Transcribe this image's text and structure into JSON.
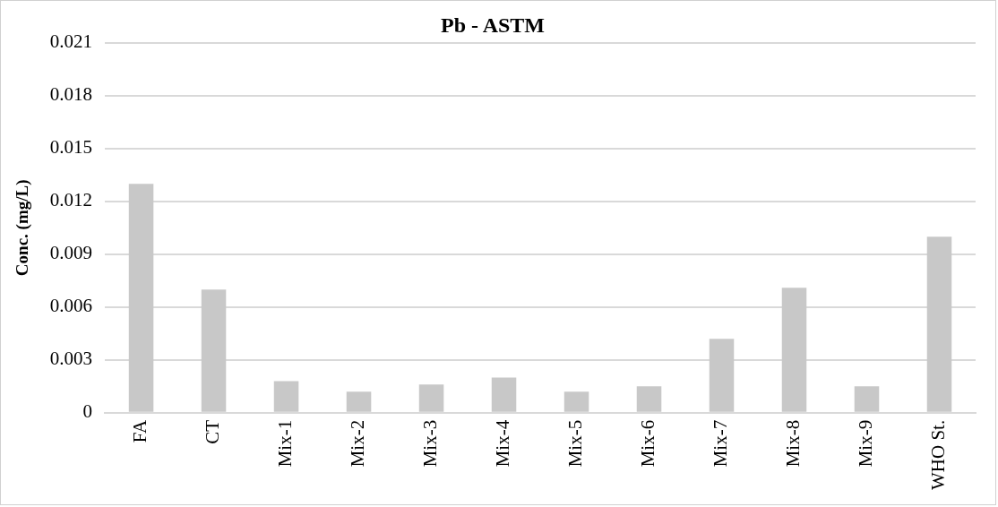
{
  "chart_data": {
    "type": "bar",
    "title": "Pb - ASTM",
    "ylabel": "Conc. (mg/L)",
    "categories": [
      "FA",
      "CT",
      "Mix-1",
      "Mix-2",
      "Mix-3",
      "Mix-4",
      "Mix-5",
      "Mix-6",
      "Mix-7",
      "Mix-8",
      "Mix-9",
      "WHO St."
    ],
    "values": [
      0.013,
      0.007,
      0.0018,
      0.0012,
      0.0016,
      0.002,
      0.0012,
      0.0015,
      0.0042,
      0.0071,
      0.0015,
      0.01
    ],
    "color": "#c8c8c8",
    "ylim": [
      0,
      0.021
    ],
    "yticks": [
      0,
      0.003,
      0.006,
      0.009,
      0.012,
      0.015,
      0.018,
      0.021
    ],
    "grid": "y"
  }
}
